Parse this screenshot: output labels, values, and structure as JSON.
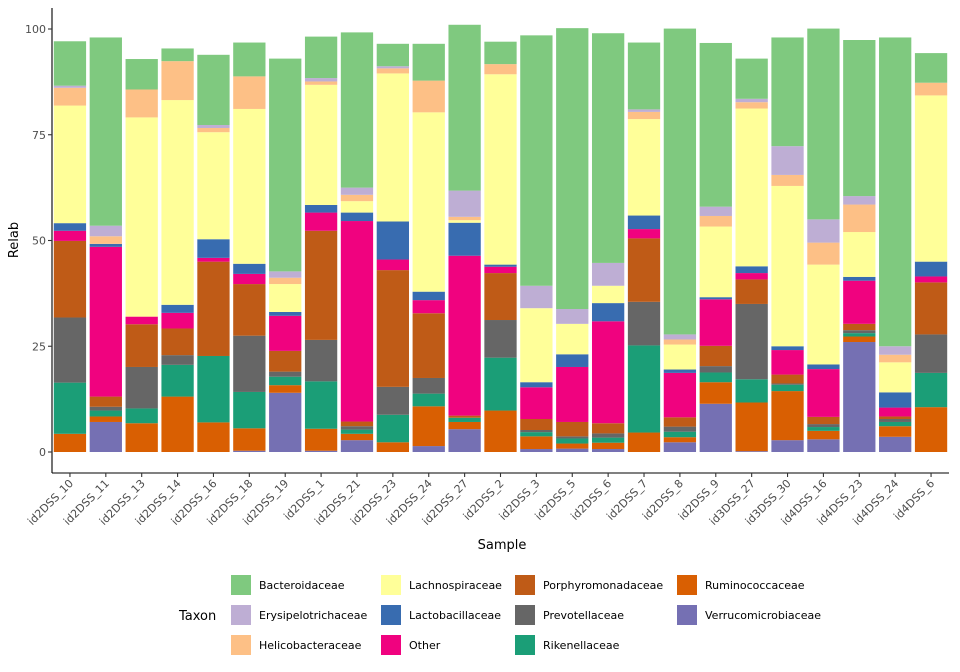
{
  "chart_data": {
    "type": "bar",
    "stacked": true,
    "xlabel": "Sample",
    "ylabel": "Relab",
    "ylim": [
      0,
      105
    ],
    "yticks": [
      0,
      25,
      50,
      75,
      100
    ],
    "grid": false,
    "legend_position": "bottom",
    "legend_title": "Taxon",
    "categories": [
      "id2DSS_10",
      "id2DSS_11",
      "id2DSS_13",
      "id2DSS_14",
      "id2DSS_16",
      "id2DSS_18",
      "id2DSS_19",
      "id2DSS_1",
      "id2DSS_21",
      "id2DSS_23",
      "id2DSS_24",
      "id2DSS_27",
      "id2DSS_2",
      "id2DSS_3",
      "id2DSS_5",
      "id2DSS_6",
      "id2DSS_7",
      "id2DSS_8",
      "id2DSS_9",
      "id3DSS_27",
      "id3DSS_30",
      "id4DSS_16",
      "id4DSS_23",
      "id4DSS_24",
      "id4DSS_6"
    ],
    "stack_order": [
      "Verrucomicrobiaceae",
      "Ruminococcaceae",
      "Rikenellaceae",
      "Prevotellaceae",
      "Porphyromonadaceae",
      "Other",
      "Lactobacillaceae",
      "Lachnospiraceae",
      "Helicobacteraceae",
      "Erysipelotrichaceae",
      "Bacteroidaceae"
    ],
    "series": [
      {
        "name": "Bacteroidaceae",
        "color": "#7FC97F",
        "values": [
          10.5,
          44.5,
          7.2,
          3,
          16.6,
          8,
          50.3,
          9.8,
          36.7,
          5.3,
          8.7,
          39.2,
          5.3,
          59.2,
          66.4,
          54.3,
          15.8,
          72.3,
          38.7,
          9.5,
          25.7,
          45.1,
          36.9,
          73,
          7
        ]
      },
      {
        "name": "Erysipelotrichaceae",
        "color": "#BEAED4",
        "values": [
          0.5,
          2.5,
          0,
          0,
          0.7,
          0,
          1.5,
          0.8,
          1.7,
          0.5,
          0,
          6.2,
          0,
          5.3,
          3.5,
          5.4,
          0.6,
          1.2,
          2.2,
          0.8,
          6.8,
          5.5,
          2,
          2,
          0
        ]
      },
      {
        "name": "Helicobacteraceae",
        "color": "#FDC086",
        "values": [
          4.2,
          1.8,
          6.6,
          9.2,
          1,
          7.7,
          1.5,
          0.8,
          1.5,
          1.2,
          7.5,
          0.8,
          2.4,
          0,
          0,
          0,
          1.7,
          1.2,
          2.5,
          1.5,
          2.6,
          5.2,
          6.5,
          1.8,
          3
        ]
      },
      {
        "name": "Lachnospiraceae",
        "color": "#FFFF99",
        "values": [
          27.8,
          0,
          47.1,
          48.4,
          25.3,
          36.6,
          6.6,
          28.4,
          2.7,
          35,
          42.4,
          0.6,
          45,
          17.5,
          7.2,
          4.1,
          22.8,
          5.9,
          16.7,
          37.3,
          37.9,
          23.6,
          10.6,
          7.1,
          39.3
        ]
      },
      {
        "name": "Lactobacillaceae",
        "color": "#386CB0",
        "values": [
          1.8,
          0.7,
          0,
          1.9,
          4.4,
          2.4,
          0.9,
          1.8,
          2,
          9,
          2,
          7.8,
          0.5,
          1.2,
          3,
          4.3,
          3.2,
          0.8,
          0.5,
          1.6,
          0.9,
          1.1,
          0.9,
          3.6,
          3.5
        ]
      },
      {
        "name": "Other",
        "color": "#F0027F",
        "values": [
          2.4,
          35.4,
          1.8,
          3.7,
          0.9,
          2.4,
          8.3,
          4.3,
          47.4,
          2.5,
          3.1,
          37.8,
          1.5,
          7.5,
          13,
          24.1,
          2.2,
          10.5,
          11,
          1.5,
          5.8,
          11.3,
          10.2,
          2.1,
          1.4
        ]
      },
      {
        "name": "Porphyromonadaceae",
        "color": "#BF5B17",
        "values": [
          18.1,
          2.4,
          10.1,
          6.3,
          22.3,
          12.2,
          4.9,
          25.8,
          1.1,
          27.6,
          15.3,
          0.5,
          11.1,
          2.6,
          3.4,
          2.4,
          15,
          2.2,
          4.8,
          5.8,
          2.1,
          1.7,
          1.5,
          0.6,
          12.3
        ]
      },
      {
        "name": "Prevotellaceae",
        "color": "#666666",
        "values": [
          15.4,
          0.9,
          9.8,
          2.3,
          0,
          13.3,
          1.2,
          9.8,
          0.8,
          6.6,
          3.7,
          0,
          8.9,
          0.5,
          0.5,
          1,
          10.3,
          1.2,
          1.5,
          17.8,
          0.3,
          0.7,
          0.7,
          0.7,
          9.1
        ]
      },
      {
        "name": "Rikenellaceae",
        "color": "#1B9E77",
        "values": [
          12.1,
          1.4,
          3.5,
          7.5,
          15.7,
          8.6,
          2,
          11.2,
          1,
          6.5,
          3,
          1,
          12.5,
          1,
          1.2,
          1.2,
          20.6,
          1.3,
          2.3,
          5.5,
          1.5,
          0.9,
          0.8,
          1,
          8.1
        ]
      },
      {
        "name": "Ruminococcaceae",
        "color": "#D95F02",
        "values": [
          4.3,
          1.3,
          6.8,
          13.1,
          7,
          5.3,
          1.8,
          5.2,
          1.5,
          2.3,
          9.4,
          1.7,
          9.8,
          3,
          1.2,
          1.5,
          4.6,
          1.2,
          5.1,
          11.5,
          11.6,
          2,
          1.3,
          2.5,
          10.6
        ]
      },
      {
        "name": "Verrucomicrobiaceae",
        "color": "#7570B3",
        "values": [
          0,
          7.1,
          0,
          0,
          0,
          0.3,
          14,
          0.3,
          2.8,
          0,
          1.4,
          5.4,
          0,
          0.7,
          0.8,
          0.7,
          0,
          2.3,
          11.4,
          0.2,
          2.8,
          3,
          26,
          3.6,
          0
        ]
      }
    ],
    "legend_rows": [
      [
        "Bacteroidaceae",
        "Lachnospiraceae",
        "Porphyromonadaceae",
        "Ruminococcaceae"
      ],
      [
        "Erysipelotrichaceae",
        "Lactobacillaceae",
        "Prevotellaceae",
        "Verrucomicrobiaceae"
      ],
      [
        "Helicobacteraceae",
        "Other",
        "Rikenellaceae",
        ""
      ]
    ]
  }
}
